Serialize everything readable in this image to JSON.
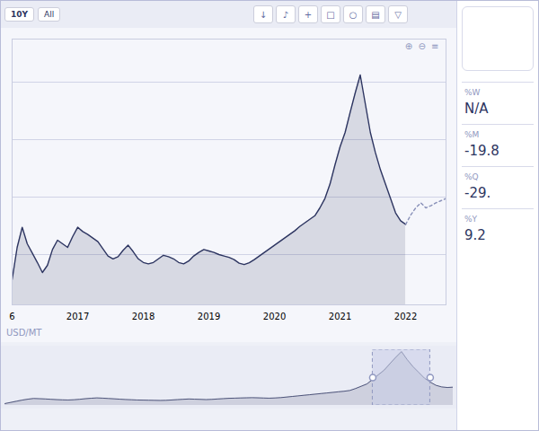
{
  "chart_data": [
    {
      "type": "line",
      "ylabel": "USD/MT",
      "categories": [
        "6",
        null,
        null,
        null,
        null,
        null,
        null,
        null,
        null,
        null,
        null,
        null,
        null,
        "2017",
        null,
        null,
        null,
        null,
        null,
        null,
        null,
        null,
        null,
        null,
        null,
        null,
        "2018",
        null,
        null,
        null,
        null,
        null,
        null,
        null,
        null,
        null,
        null,
        null,
        null,
        "2019",
        null,
        null,
        null,
        null,
        null,
        null,
        null,
        null,
        null,
        null,
        null,
        null,
        "2020",
        null,
        null,
        null,
        null,
        null,
        null,
        null,
        null,
        null,
        null,
        null,
        null,
        "2021",
        null,
        null,
        null,
        null,
        null,
        null,
        null,
        null,
        null,
        null,
        null,
        null,
        "2022",
        null,
        null,
        null,
        null,
        null,
        null,
        null,
        null
      ],
      "series": [
        {
          "type": "area",
          "color": "#2d3561",
          "line_style": "solid",
          "values": [
            2050,
            2500,
            2780,
            2550,
            2420,
            2290,
            2150,
            2250,
            2470,
            2600,
            2550,
            2500,
            2650,
            2780,
            2720,
            2680,
            2630,
            2580,
            2480,
            2380,
            2340,
            2370,
            2460,
            2530,
            2440,
            2340,
            2290,
            2270,
            2290,
            2340,
            2390,
            2370,
            2340,
            2290,
            2270,
            2310,
            2380,
            2430,
            2470,
            2450,
            2430,
            2400,
            2380,
            2360,
            2330,
            2280,
            2260,
            2285,
            2330,
            2380,
            2430,
            2480,
            2530,
            2580,
            2630,
            2680,
            2730,
            2790,
            2840,
            2890,
            2940,
            3050,
            3180,
            3380,
            3650,
            3900,
            4100,
            4380,
            4650,
            4900,
            4500,
            4100,
            3820,
            3580,
            3380,
            3180,
            2980,
            2870,
            2820,
            null,
            null,
            null,
            null,
            null,
            null,
            null,
            null
          ]
        },
        {
          "type": "line",
          "color": "#8890b8",
          "line_style": "dashed",
          "values": [
            null,
            null,
            null,
            null,
            null,
            null,
            null,
            null,
            null,
            null,
            null,
            null,
            null,
            null,
            null,
            null,
            null,
            null,
            null,
            null,
            null,
            null,
            null,
            null,
            null,
            null,
            null,
            null,
            null,
            null,
            null,
            null,
            null,
            null,
            null,
            null,
            null,
            null,
            null,
            null,
            null,
            null,
            null,
            null,
            null,
            null,
            null,
            null,
            null,
            null,
            null,
            null,
            null,
            null,
            null,
            null,
            null,
            null,
            null,
            null,
            null,
            null,
            null,
            null,
            null,
            null,
            null,
            null,
            null,
            null,
            null,
            null,
            null,
            null,
            null,
            null,
            null,
            null,
            2820,
            2950,
            3050,
            3120,
            3050,
            3080,
            3120,
            3150,
            3180
          ]
        }
      ],
      "ylim": [
        1700,
        5400
      ],
      "yticks": [
        2400,
        3200,
        4000,
        4800
      ],
      "grid": true,
      "tick_labels": "x",
      "annotations": {
        "buttons": [
          "10Y",
          "All"
        ],
        "icons": [
          "↓",
          "♪",
          "+",
          "□",
          "○",
          "▤",
          "▽"
        ],
        "chart_icons": "⊕  ⊖  ≡"
      },
      "stats": [
        {
          "label": "%W",
          "value": "N/A"
        },
        {
          "label": "%M",
          "value": "-19.8"
        },
        {
          "label": "%Q",
          "value": "-29."
        },
        {
          "label": "%Y",
          "value": "9.2"
        }
      ]
    },
    {
      "type": "area",
      "color": "#2d3561",
      "values": [
        2050,
        2100,
        2150,
        2200,
        2240,
        2270,
        2260,
        2250,
        2235,
        2220,
        2210,
        2205,
        2215,
        2235,
        2260,
        2280,
        2295,
        2285,
        2270,
        2255,
        2240,
        2225,
        2215,
        2205,
        2200,
        2195,
        2190,
        2185,
        2190,
        2205,
        2220,
        2235,
        2248,
        2240,
        2232,
        2222,
        2232,
        2248,
        2263,
        2278,
        2285,
        2292,
        2298,
        2305,
        2298,
        2290,
        2283,
        2292,
        2308,
        2332,
        2358,
        2383,
        2408,
        2432,
        2458,
        2483,
        2508,
        2533,
        2558,
        2583,
        2616,
        2700,
        2800,
        2900,
        3100,
        3300,
        3500,
        3780,
        4050,
        4300,
        3950,
        3650,
        3400,
        3150,
        2980,
        2840,
        2770,
        2745,
        2760
      ],
      "ylim": [
        1970,
        4380
      ],
      "selected_range": [
        64,
        74
      ],
      "tick_labels": false
    }
  ]
}
